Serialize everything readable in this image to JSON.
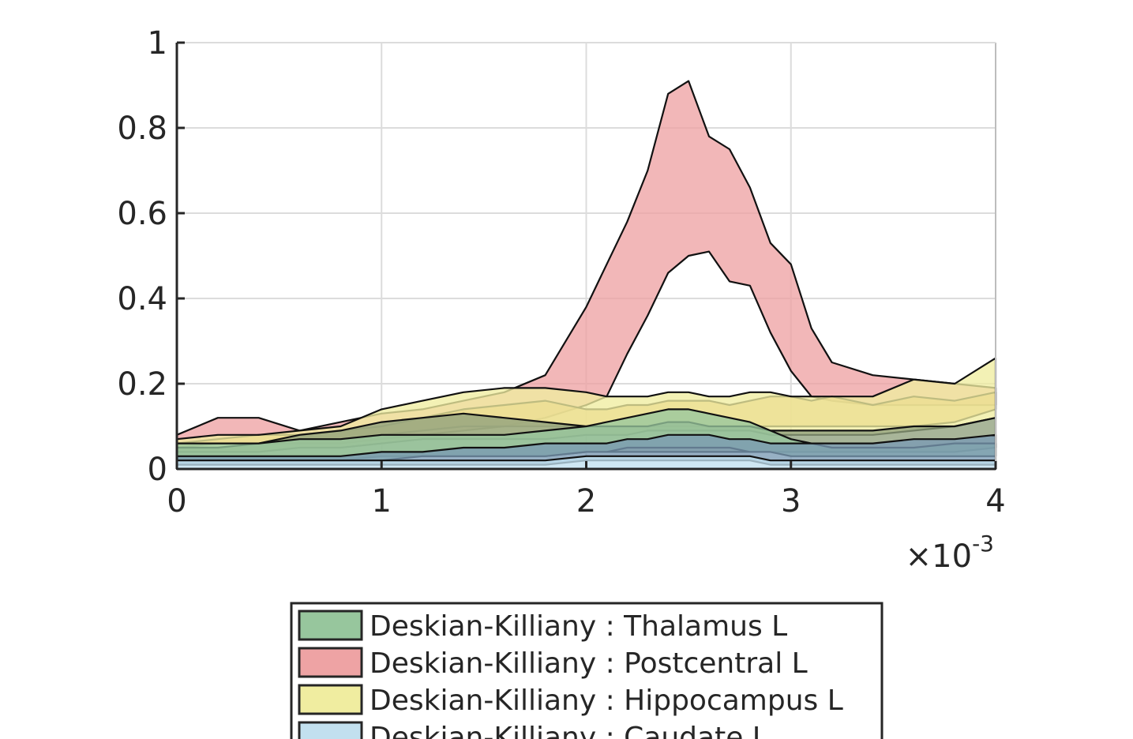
{
  "chart_data": {
    "type": "area",
    "title": "",
    "xlabel": "",
    "ylabel": "",
    "x_multiplier": {
      "times": "×",
      "base": "10",
      "exponent": "-3"
    },
    "xlim": [
      0,
      0.004
    ],
    "ylim": [
      0,
      1
    ],
    "x_ticks": [
      0,
      0.001,
      0.002,
      0.003,
      0.004
    ],
    "x_tick_labels": [
      "0",
      "1",
      "2",
      "3",
      "4"
    ],
    "y_ticks": [
      0,
      0.2,
      0.4,
      0.6,
      0.8,
      1
    ],
    "y_tick_labels": [
      "0",
      "0.2",
      "0.4",
      "0.6",
      "0.8",
      "1"
    ],
    "grid": true,
    "legend_position": "bottom-center",
    "x": [
      0,
      0.0002,
      0.0004,
      0.0006,
      0.0008,
      0.001,
      0.0012,
      0.0014,
      0.0016,
      0.0018,
      0.002,
      0.0021,
      0.0022,
      0.0023,
      0.0024,
      0.0025,
      0.0026,
      0.0027,
      0.0028,
      0.0029,
      0.003,
      0.0031,
      0.0032,
      0.0034,
      0.0036,
      0.0038,
      0.004
    ],
    "series": [
      {
        "name": "Deskian-Killiany : Thalamus L",
        "color": "#97c69d",
        "upper": [
          0.06,
          0.06,
          0.06,
          0.07,
          0.07,
          0.08,
          0.08,
          0.08,
          0.08,
          0.09,
          0.1,
          0.11,
          0.12,
          0.13,
          0.14,
          0.14,
          0.13,
          0.12,
          0.11,
          0.09,
          0.07,
          0.06,
          0.05,
          0.05,
          0.05,
          0.06,
          0.06
        ],
        "lower": [
          0.02,
          0.02,
          0.02,
          0.02,
          0.02,
          0.02,
          0.03,
          0.03,
          0.03,
          0.03,
          0.04,
          0.04,
          0.05,
          0.05,
          0.05,
          0.05,
          0.05,
          0.05,
          0.04,
          0.04,
          0.03,
          0.03,
          0.03,
          0.03,
          0.03,
          0.03,
          0.03
        ]
      },
      {
        "name": "Deskian-Killiany : Postcentral L",
        "color": "#eea3a4",
        "upper": [
          0.08,
          0.12,
          0.12,
          0.09,
          0.11,
          0.13,
          0.14,
          0.16,
          0.18,
          0.22,
          0.38,
          0.48,
          0.58,
          0.7,
          0.88,
          0.91,
          0.78,
          0.75,
          0.66,
          0.53,
          0.48,
          0.33,
          0.25,
          0.22,
          0.21,
          0.2,
          0.19
        ],
        "lower": [
          0.05,
          0.06,
          0.06,
          0.06,
          0.06,
          0.07,
          0.08,
          0.09,
          0.1,
          0.12,
          0.15,
          0.17,
          0.27,
          0.36,
          0.46,
          0.5,
          0.51,
          0.44,
          0.43,
          0.32,
          0.23,
          0.17,
          0.16,
          0.15,
          0.15,
          0.15,
          0.15
        ]
      },
      {
        "name": "Deskian-Killiany : Hippocampus L",
        "color": "#f0eda0",
        "upper": [
          0.07,
          0.08,
          0.08,
          0.09,
          0.1,
          0.14,
          0.16,
          0.18,
          0.19,
          0.19,
          0.18,
          0.17,
          0.17,
          0.17,
          0.18,
          0.18,
          0.17,
          0.17,
          0.18,
          0.18,
          0.17,
          0.17,
          0.17,
          0.17,
          0.21,
          0.2,
          0.26
        ],
        "lower": [
          0.04,
          0.04,
          0.04,
          0.05,
          0.05,
          0.06,
          0.07,
          0.07,
          0.07,
          0.07,
          0.08,
          0.08,
          0.08,
          0.09,
          0.09,
          0.09,
          0.09,
          0.09,
          0.09,
          0.08,
          0.08,
          0.08,
          0.08,
          0.08,
          0.09,
          0.1,
          0.12
        ]
      },
      {
        "name": "Deskian-Killiany : Caudate L",
        "color": "#c2e0ef",
        "upper": [
          0.02,
          0.02,
          0.02,
          0.02,
          0.02,
          0.02,
          0.02,
          0.02,
          0.02,
          0.02,
          0.03,
          0.03,
          0.03,
          0.03,
          0.03,
          0.03,
          0.03,
          0.03,
          0.03,
          0.02,
          0.02,
          0.02,
          0.02,
          0.02,
          0.02,
          0.02,
          0.02
        ],
        "lower": [
          0,
          0,
          0,
          0,
          0,
          0,
          0,
          0,
          0,
          0,
          0,
          0,
          0,
          0,
          0,
          0,
          0,
          0,
          0,
          0,
          0,
          0,
          0,
          0,
          0,
          0,
          0
        ]
      },
      {
        "name": "",
        "color": "#e1ad61",
        "upper": [
          0.06,
          0.07,
          0.08,
          0.08,
          0.09,
          0.1,
          0.12,
          0.14,
          0.15,
          0.16,
          0.14,
          0.14,
          0.15,
          0.15,
          0.16,
          0.16,
          0.16,
          0.15,
          0.16,
          0.17,
          0.17,
          0.16,
          0.17,
          0.15,
          0.17,
          0.16,
          0.18
        ],
        "lower": [
          0.05,
          0.06,
          0.06,
          0.07,
          0.07,
          0.08,
          0.09,
          0.1,
          0.1,
          0.1,
          0.1,
          0.1,
          0.1,
          0.1,
          0.1,
          0.1,
          0.1,
          0.1,
          0.1,
          0.1,
          0.1,
          0.1,
          0.1,
          0.1,
          0.1,
          0.11,
          0.14
        ]
      },
      {
        "name": "",
        "color": "#8fa07c",
        "upper": [
          0.05,
          0.05,
          0.06,
          0.08,
          0.09,
          0.11,
          0.12,
          0.13,
          0.12,
          0.11,
          0.1,
          0.1,
          0.1,
          0.1,
          0.11,
          0.11,
          0.1,
          0.1,
          0.1,
          0.09,
          0.09,
          0.09,
          0.09,
          0.09,
          0.1,
          0.1,
          0.12
        ],
        "lower": [
          0.02,
          0.02,
          0.02,
          0.02,
          0.02,
          0.03,
          0.03,
          0.03,
          0.03,
          0.03,
          0.04,
          0.04,
          0.04,
          0.04,
          0.04,
          0.04,
          0.04,
          0.04,
          0.04,
          0.04,
          0.04,
          0.04,
          0.04,
          0.04,
          0.04,
          0.04,
          0.05
        ]
      },
      {
        "name": "",
        "color": "#7a9ab3",
        "upper": [
          0.03,
          0.03,
          0.03,
          0.03,
          0.03,
          0.04,
          0.04,
          0.05,
          0.05,
          0.06,
          0.06,
          0.06,
          0.07,
          0.07,
          0.08,
          0.08,
          0.08,
          0.07,
          0.07,
          0.06,
          0.06,
          0.06,
          0.06,
          0.06,
          0.07,
          0.07,
          0.08
        ],
        "lower": [
          0.01,
          0.01,
          0.01,
          0.01,
          0.01,
          0.01,
          0.01,
          0.01,
          0.01,
          0.01,
          0.02,
          0.02,
          0.02,
          0.02,
          0.02,
          0.02,
          0.02,
          0.02,
          0.02,
          0.01,
          0.01,
          0.01,
          0.01,
          0.01,
          0.01,
          0.01,
          0.01
        ]
      }
    ]
  }
}
